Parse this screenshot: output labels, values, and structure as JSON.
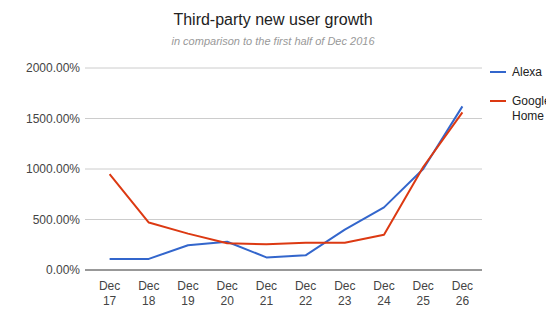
{
  "chart_data": {
    "type": "line",
    "title": "Third-party new user growth",
    "subtitle": "in comparison to the first half of Dec 2016",
    "categories": [
      "Dec 17",
      "Dec 18",
      "Dec 19",
      "Dec 20",
      "Dec 21",
      "Dec 22",
      "Dec 23",
      "Dec 24",
      "Dec 25",
      "Dec 26"
    ],
    "series": [
      {
        "name": "Alexa",
        "color": "#3366cc",
        "values": [
          110,
          110,
          245,
          280,
          125,
          145,
          400,
          620,
          1000,
          1620
        ]
      },
      {
        "name": "Google Home",
        "color": "#dc3912",
        "values": [
          950,
          470,
          360,
          265,
          255,
          270,
          270,
          350,
          1020,
          1560
        ]
      }
    ],
    "ylim": [
      0,
      2000
    ],
    "yticks": [
      {
        "value": 0,
        "label": "0.00%"
      },
      {
        "value": 500,
        "label": "500.00%"
      },
      {
        "value": 1000,
        "label": "1000.00%"
      },
      {
        "value": 1500,
        "label": "1500.00%"
      },
      {
        "value": 2000,
        "label": "2000.00%"
      }
    ],
    "grid": true,
    "legend": "right"
  }
}
